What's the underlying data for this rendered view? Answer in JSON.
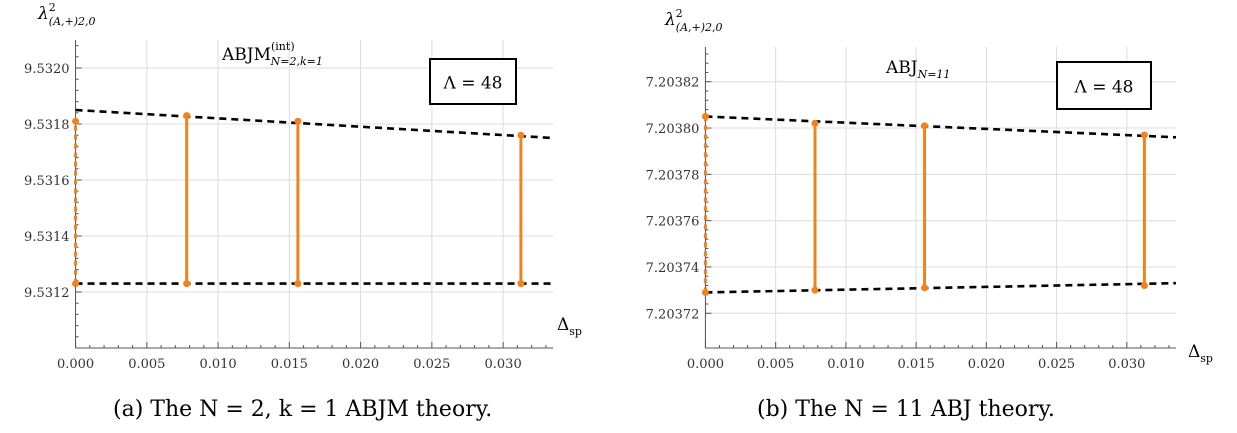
{
  "captions": {
    "a": "(a) The N = 2, k = 1 ABJM theory.",
    "b": "(b) The N = 11 ABJ theory."
  },
  "chart_data": [
    {
      "type": "line",
      "ylabel_main": "λ",
      "ylabel_sup": "2",
      "ylabel_sub": "(A,+)2,0",
      "xlabel_main": "Δ",
      "xlabel_sub": "sp",
      "title_main": "ABJM",
      "title_sup": "(int)",
      "title_sub": "N=2,k=1",
      "box_label": "Λ = 48",
      "xlim": [
        -0.0006,
        0.0335
      ],
      "ylim": [
        9.531,
        9.5321
      ],
      "xticks": [
        0.0,
        0.005,
        0.01,
        0.015,
        0.02,
        0.025,
        0.03
      ],
      "xtick_labels": [
        "0.000",
        "0.005",
        "0.010",
        "0.015",
        "0.020",
        "0.025",
        "0.030"
      ],
      "yticks": [
        9.5312,
        9.5314,
        9.5316,
        9.5318,
        9.532
      ],
      "ytick_labels": [
        "9.5312",
        "9.5314",
        "9.5316",
        "9.5318",
        "9.5320"
      ],
      "grid": true,
      "intervals": [
        {
          "x": 0.0,
          "lower": 9.53123,
          "upper": 9.53181
        },
        {
          "x": 0.0078,
          "lower": 9.53123,
          "upper": 9.53183
        },
        {
          "x": 0.0156,
          "lower": 9.53123,
          "upper": 9.53181
        },
        {
          "x": 0.03125,
          "lower": 9.53123,
          "upper": 9.53176
        }
      ],
      "fit_lines": [
        {
          "x": [
            0.0,
            0.0335
          ],
          "y": [
            9.53185,
            9.53175
          ]
        },
        {
          "x": [
            0.0,
            0.0335
          ],
          "y": [
            9.53123,
            9.53123
          ]
        }
      ],
      "colors": {
        "interval": "#f0831c",
        "fit": "#000000"
      }
    },
    {
      "type": "line",
      "ylabel_main": "λ",
      "ylabel_sup": "2",
      "ylabel_sub": "(A,+)2,0",
      "xlabel_main": "Δ",
      "xlabel_sub": "sp",
      "title_main": "ABJ",
      "title_sup": "",
      "title_sub": "N=11",
      "box_label": "Λ = 48",
      "xlim": [
        -0.0006,
        0.0335
      ],
      "ylim": [
        7.203705,
        7.203835
      ],
      "xticks": [
        0.0,
        0.005,
        0.01,
        0.015,
        0.02,
        0.025,
        0.03
      ],
      "xtick_labels": [
        "0.000",
        "0.005",
        "0.010",
        "0.015",
        "0.020",
        "0.025",
        "0.030"
      ],
      "yticks": [
        7.20372,
        7.20374,
        7.20376,
        7.20378,
        7.2038,
        7.20382
      ],
      "ytick_labels": [
        "7.20372",
        "7.20374",
        "7.20376",
        "7.20378",
        "7.20380",
        "7.20382"
      ],
      "grid": true,
      "intervals": [
        {
          "x": 0.0,
          "lower": 7.203729,
          "upper": 7.203805
        },
        {
          "x": 0.0078,
          "lower": 7.20373,
          "upper": 7.203802
        },
        {
          "x": 0.0156,
          "lower": 7.203731,
          "upper": 7.203801
        },
        {
          "x": 0.03125,
          "lower": 7.203732,
          "upper": 7.203797
        }
      ],
      "fit_lines": [
        {
          "x": [
            0.0,
            0.0335
          ],
          "y": [
            7.203805,
            7.203796
          ]
        },
        {
          "x": [
            0.0,
            0.0335
          ],
          "y": [
            7.203729,
            7.203733
          ]
        }
      ],
      "colors": {
        "interval": "#f0831c",
        "fit": "#000000"
      }
    }
  ]
}
